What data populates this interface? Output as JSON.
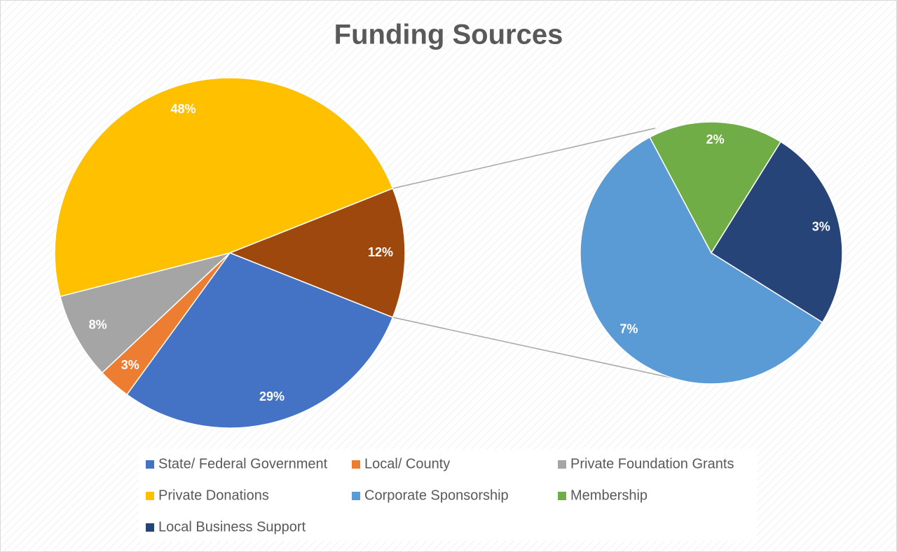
{
  "chart_data": {
    "type": "pie-of-pie",
    "title": "Funding Sources",
    "categories": [
      "State/ Federal Government",
      "Local/ County",
      "Private Foundation Grants",
      "Private Donations",
      "Corporate Sponsorship",
      "Membership",
      "Local Business Support"
    ],
    "values": [
      29,
      3,
      8,
      48,
      7,
      2,
      3
    ],
    "value_labels": [
      "29%",
      "3%",
      "8%",
      "48%",
      "7%",
      "2%",
      "3%"
    ],
    "colors": [
      "#4472c4",
      "#ed7d31",
      "#a5a5a5",
      "#ffc000",
      "#5b9bd5",
      "#70ad47",
      "#264478"
    ],
    "plot": [
      "primary",
      "primary",
      "primary",
      "primary",
      "secondary",
      "secondary",
      "secondary"
    ],
    "other": {
      "value": 12,
      "value_label": "12%",
      "color": "#9e480e"
    },
    "legend": "bottom"
  }
}
